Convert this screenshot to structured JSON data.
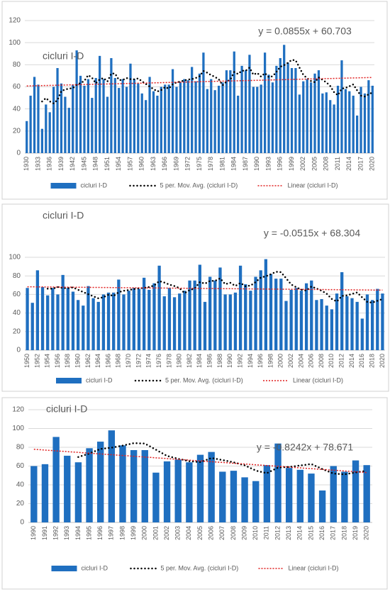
{
  "chart_data": [
    {
      "type": "bar",
      "title": "cicluri I-D",
      "x": [
        1930,
        1931,
        1932,
        1933,
        1934,
        1935,
        1936,
        1937,
        1938,
        1939,
        1940,
        1941,
        1942,
        1943,
        1944,
        1945,
        1946,
        1947,
        1948,
        1949,
        1950,
        1951,
        1952,
        1953,
        1954,
        1955,
        1956,
        1957,
        1958,
        1959,
        1960,
        1961,
        1962,
        1963,
        1964,
        1965,
        1966,
        1967,
        1968,
        1969,
        1970,
        1971,
        1972,
        1973,
        1974,
        1975,
        1976,
        1977,
        1978,
        1979,
        1980,
        1981,
        1982,
        1983,
        1984,
        1985,
        1986,
        1987,
        1988,
        1989,
        1990,
        1991,
        1992,
        1993,
        1994,
        1995,
        1996,
        1997,
        1998,
        1999,
        2000,
        2001,
        2002,
        2003,
        2004,
        2005,
        2006,
        2007,
        2008,
        2009,
        2010,
        2011,
        2012,
        2013,
        2014,
        2015,
        2016,
        2017,
        2018,
        2019,
        2020
      ],
      "xticks": [
        1930,
        1933,
        1936,
        1939,
        1942,
        1945,
        1948,
        1951,
        1954,
        1957,
        1960,
        1963,
        1966,
        1969,
        1972,
        1975,
        1978,
        1981,
        1984,
        1987,
        1990,
        1993,
        1996,
        1999,
        2002,
        2005,
        2008,
        2011,
        2014,
        2017,
        2020
      ],
      "xlim": [
        1929.5,
        2020.5
      ],
      "series": [
        {
          "name": "cicluri I-D",
          "color": "#1f6fc0",
          "values": [
            29,
            52,
            69,
            62,
            22,
            44,
            37,
            60,
            77,
            63,
            51,
            41,
            62,
            93,
            70,
            61,
            67,
            50,
            68,
            88,
            67,
            51,
            86,
            68,
            59,
            67,
            60,
            81,
            67,
            63,
            54,
            48,
            69,
            56,
            52,
            60,
            62,
            62,
            76,
            60,
            64,
            67,
            66,
            78,
            65,
            72,
            91,
            58,
            67,
            57,
            61,
            64,
            75,
            75,
            92,
            52,
            79,
            75,
            89,
            60,
            60,
            62,
            91,
            71,
            64,
            79,
            86,
            98,
            82,
            77,
            77,
            53,
            65,
            67,
            64,
            72,
            75,
            54,
            55,
            48,
            44,
            61,
            84,
            58,
            56,
            52,
            34,
            60,
            54,
            66,
            61
          ]
        }
      ],
      "moving_average": {
        "name": "5 per. Mov. Avg. (cicluri I-D)",
        "period": 5,
        "color": "#000000"
      },
      "trendline": {
        "name": "Linear (cicluri I-D)",
        "label": "y = 0.0855x + 60.703",
        "slope": 0.0855,
        "intercept": 60.703,
        "color": "#e02020"
      },
      "ylim": [
        0,
        120
      ],
      "yticks": [
        0,
        20,
        40,
        60,
        80,
        100,
        120
      ],
      "grid": true
    },
    {
      "type": "bar",
      "title": "cicluri I-D",
      "x": [
        1950,
        1951,
        1952,
        1953,
        1954,
        1955,
        1956,
        1957,
        1958,
        1959,
        1960,
        1961,
        1962,
        1963,
        1964,
        1965,
        1966,
        1967,
        1968,
        1969,
        1970,
        1971,
        1972,
        1973,
        1974,
        1975,
        1976,
        1977,
        1978,
        1979,
        1980,
        1981,
        1982,
        1983,
        1984,
        1985,
        1986,
        1987,
        1988,
        1989,
        1990,
        1991,
        1992,
        1993,
        1994,
        1995,
        1996,
        1997,
        1998,
        1999,
        2000,
        2001,
        2002,
        2003,
        2004,
        2005,
        2006,
        2007,
        2008,
        2009,
        2010,
        2011,
        2012,
        2013,
        2014,
        2015,
        2016,
        2017,
        2018,
        2019,
        2020
      ],
      "xticks": [
        1950,
        1952,
        1954,
        1956,
        1958,
        1960,
        1962,
        1964,
        1966,
        1968,
        1970,
        1972,
        1974,
        1976,
        1978,
        1980,
        1982,
        1984,
        1986,
        1988,
        1990,
        1992,
        1994,
        1996,
        1998,
        2000,
        2002,
        2004,
        2006,
        2008,
        2010,
        2012,
        2014,
        2016,
        2018,
        2020
      ],
      "xlim": [
        1949.5,
        2020.5
      ],
      "series": [
        {
          "name": "cicluri I-D",
          "color": "#1f6fc0",
          "values": [
            67,
            51,
            86,
            68,
            59,
            67,
            60,
            81,
            67,
            63,
            54,
            48,
            69,
            56,
            52,
            60,
            62,
            62,
            76,
            60,
            64,
            67,
            66,
            78,
            65,
            72,
            91,
            58,
            67,
            57,
            61,
            64,
            75,
            75,
            92,
            52,
            79,
            75,
            89,
            60,
            60,
            62,
            91,
            71,
            64,
            79,
            86,
            98,
            82,
            77,
            77,
            53,
            65,
            67,
            64,
            72,
            75,
            54,
            55,
            48,
            44,
            61,
            84,
            58,
            56,
            52,
            34,
            60,
            54,
            66,
            61
          ]
        }
      ],
      "moving_average": {
        "name": "5 per. Mov. Avg. (cicluri I-D)",
        "period": 5,
        "color": "#000000"
      },
      "trendline": {
        "name": "Linear (cicluri I-D)",
        "label": "y = -0.0515x + 68.304",
        "slope": -0.0515,
        "intercept": 68.304,
        "color": "#e02020"
      },
      "ylim": [
        0,
        100
      ],
      "yticks": [
        0,
        20,
        40,
        60,
        80,
        100
      ],
      "grid": true
    },
    {
      "type": "bar",
      "title": "cicluri I-D",
      "x": [
        1990,
        1991,
        1992,
        1993,
        1994,
        1995,
        1996,
        1997,
        1998,
        1999,
        2000,
        2001,
        2002,
        2003,
        2004,
        2005,
        2006,
        2007,
        2008,
        2009,
        2010,
        2011,
        2012,
        2013,
        2014,
        2015,
        2016,
        2017,
        2018,
        2019,
        2020
      ],
      "xticks": [
        1990,
        1991,
        1992,
        1993,
        1994,
        1995,
        1996,
        1997,
        1998,
        1999,
        2000,
        2001,
        2002,
        2003,
        2004,
        2005,
        2006,
        2007,
        2008,
        2009,
        2010,
        2011,
        2012,
        2013,
        2014,
        2015,
        2016,
        2017,
        2018,
        2019,
        2020
      ],
      "xlim": [
        1989.5,
        2020.5
      ],
      "series": [
        {
          "name": "cicluri I-D",
          "color": "#1f6fc0",
          "values": [
            60,
            62,
            91,
            71,
            64,
            79,
            86,
            98,
            82,
            77,
            77,
            53,
            65,
            67,
            64,
            72,
            75,
            54,
            55,
            48,
            44,
            61,
            84,
            58,
            56,
            52,
            34,
            60,
            54,
            66,
            61
          ]
        }
      ],
      "moving_average": {
        "name": "5 per. Mov. Avg. (cicluri I-D)",
        "period": 5,
        "color": "#000000"
      },
      "trendline": {
        "name": "Linear (cicluri I-D)",
        "label": "y = -0.8242x + 78.671",
        "slope": -0.8242,
        "intercept": 78.671,
        "color": "#e02020"
      },
      "ylim": [
        0,
        120
      ],
      "yticks": [
        0,
        20,
        40,
        60,
        80,
        100,
        120
      ],
      "grid": true
    }
  ]
}
